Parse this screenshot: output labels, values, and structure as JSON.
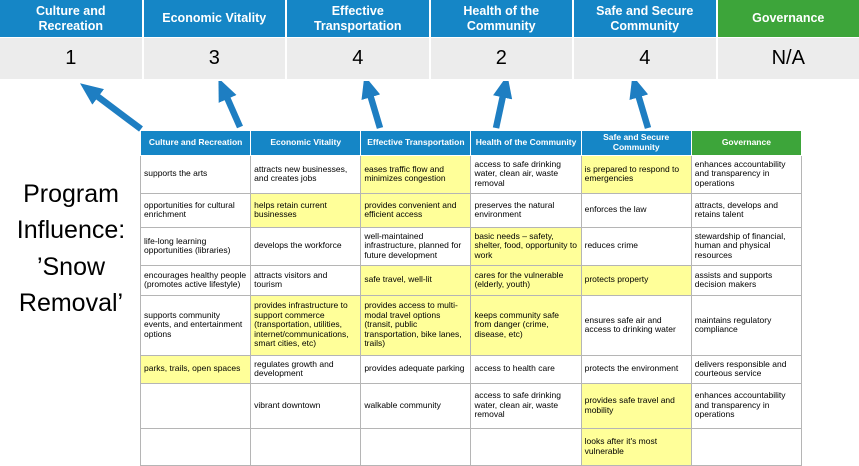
{
  "program_label": "Program Influence: ’Snow Removal’",
  "colors": {
    "blue": "#1586C6",
    "green": "#3DA53A",
    "highlight": "#FFFF99",
    "arrow": "#1E7EC2",
    "score_bg": "#ECECEC"
  },
  "summary": {
    "columns": [
      {
        "label": "Culture and Recreation",
        "score": "1",
        "color": "blue"
      },
      {
        "label": "Economic Vitality",
        "score": "3",
        "color": "blue"
      },
      {
        "label": "Effective Transportation",
        "score": "4",
        "color": "blue"
      },
      {
        "label": "Health of the Community",
        "score": "2",
        "color": "blue"
      },
      {
        "label": "Safe and Secure Community",
        "score": "4",
        "color": "blue"
      },
      {
        "label": "Governance",
        "score": "N/A",
        "color": "green"
      }
    ]
  },
  "matrix": {
    "headers": [
      {
        "label": "Culture and Recreation",
        "color": "blue"
      },
      {
        "label": "Economic Vitality",
        "color": "blue"
      },
      {
        "label": "Effective Transportation",
        "color": "blue"
      },
      {
        "label": "Health of the Community",
        "color": "blue"
      },
      {
        "label": "Safe and Secure Community",
        "color": "blue"
      },
      {
        "label": "Governance",
        "color": "green"
      }
    ],
    "rows": [
      [
        {
          "text": "supports the arts",
          "highlight": false
        },
        {
          "text": "attracts new businesses, and creates jobs",
          "highlight": false
        },
        {
          "text": "eases traffic flow and minimizes congestion",
          "highlight": true
        },
        {
          "text": "access to safe drinking water, clean air, waste removal",
          "highlight": false
        },
        {
          "text": "is prepared to respond to emergencies",
          "highlight": true
        },
        {
          "text": "enhances accountability and transparency in operations",
          "highlight": false
        }
      ],
      [
        {
          "text": "opportunities for cultural enrichment",
          "highlight": false
        },
        {
          "text": "helps retain current businesses",
          "highlight": true
        },
        {
          "text": "provides convenient and efficient access",
          "highlight": true
        },
        {
          "text": "preserves the natural environment",
          "highlight": false
        },
        {
          "text": "enforces the law",
          "highlight": false
        },
        {
          "text": "attracts, develops and retains talent",
          "highlight": false
        }
      ],
      [
        {
          "text": "life-long learning opportunities (libraries)",
          "highlight": false
        },
        {
          "text": "develops the workforce",
          "highlight": false
        },
        {
          "text": "well-maintained infrastructure, planned for future development",
          "highlight": false
        },
        {
          "text": "basic needs – safety, shelter, food, opportunity to work",
          "highlight": true
        },
        {
          "text": "reduces crime",
          "highlight": false
        },
        {
          "text": "stewardship of financial, human and physical resources",
          "highlight": false
        }
      ],
      [
        {
          "text": "encourages healthy people (promotes active lifestyle)",
          "highlight": false
        },
        {
          "text": "attracts visitors and tourism",
          "highlight": false
        },
        {
          "text": "safe travel, well-lit",
          "highlight": true
        },
        {
          "text": "cares for the vulnerable (elderly, youth)",
          "highlight": true
        },
        {
          "text": "protects property",
          "highlight": true
        },
        {
          "text": "assists and supports decision makers",
          "highlight": false
        }
      ],
      [
        {
          "text": "supports community events, and entertainment options",
          "highlight": false
        },
        {
          "text": "provides infrastructure to support commerce (transportation, utilities, internet/communications, smart cities, etc)",
          "highlight": true
        },
        {
          "text": "provides access to multi-modal travel options (transit, public transportation, bike lanes, trails)",
          "highlight": true
        },
        {
          "text": "keeps community safe from danger (crime, disease, etc)",
          "highlight": true
        },
        {
          "text": "ensures safe air and access to drinking water",
          "highlight": false
        },
        {
          "text": "maintains regulatory compliance",
          "highlight": false
        }
      ],
      [
        {
          "text": "parks, trails, open spaces",
          "highlight": true
        },
        {
          "text": "regulates growth and development",
          "highlight": false
        },
        {
          "text": "provides adequate parking",
          "highlight": false
        },
        {
          "text": "access to health care",
          "highlight": false
        },
        {
          "text": "protects the environment",
          "highlight": false
        },
        {
          "text": "delivers responsible and courteous service",
          "highlight": false
        }
      ],
      [
        {
          "text": "",
          "highlight": false
        },
        {
          "text": "vibrant downtown",
          "highlight": false
        },
        {
          "text": "walkable community",
          "highlight": false
        },
        {
          "text": "access to safe drinking water, clean air, waste removal",
          "highlight": false
        },
        {
          "text": "provides safe travel and mobility",
          "highlight": true
        },
        {
          "text": "enhances accountability and transparency in operations",
          "highlight": false
        }
      ],
      [
        {
          "text": "",
          "highlight": false
        },
        {
          "text": "",
          "highlight": false
        },
        {
          "text": "",
          "highlight": false
        },
        {
          "text": "",
          "highlight": false
        },
        {
          "text": "looks after it's most vulnerable",
          "highlight": true
        },
        {
          "text": "",
          "highlight": false
        }
      ]
    ]
  }
}
